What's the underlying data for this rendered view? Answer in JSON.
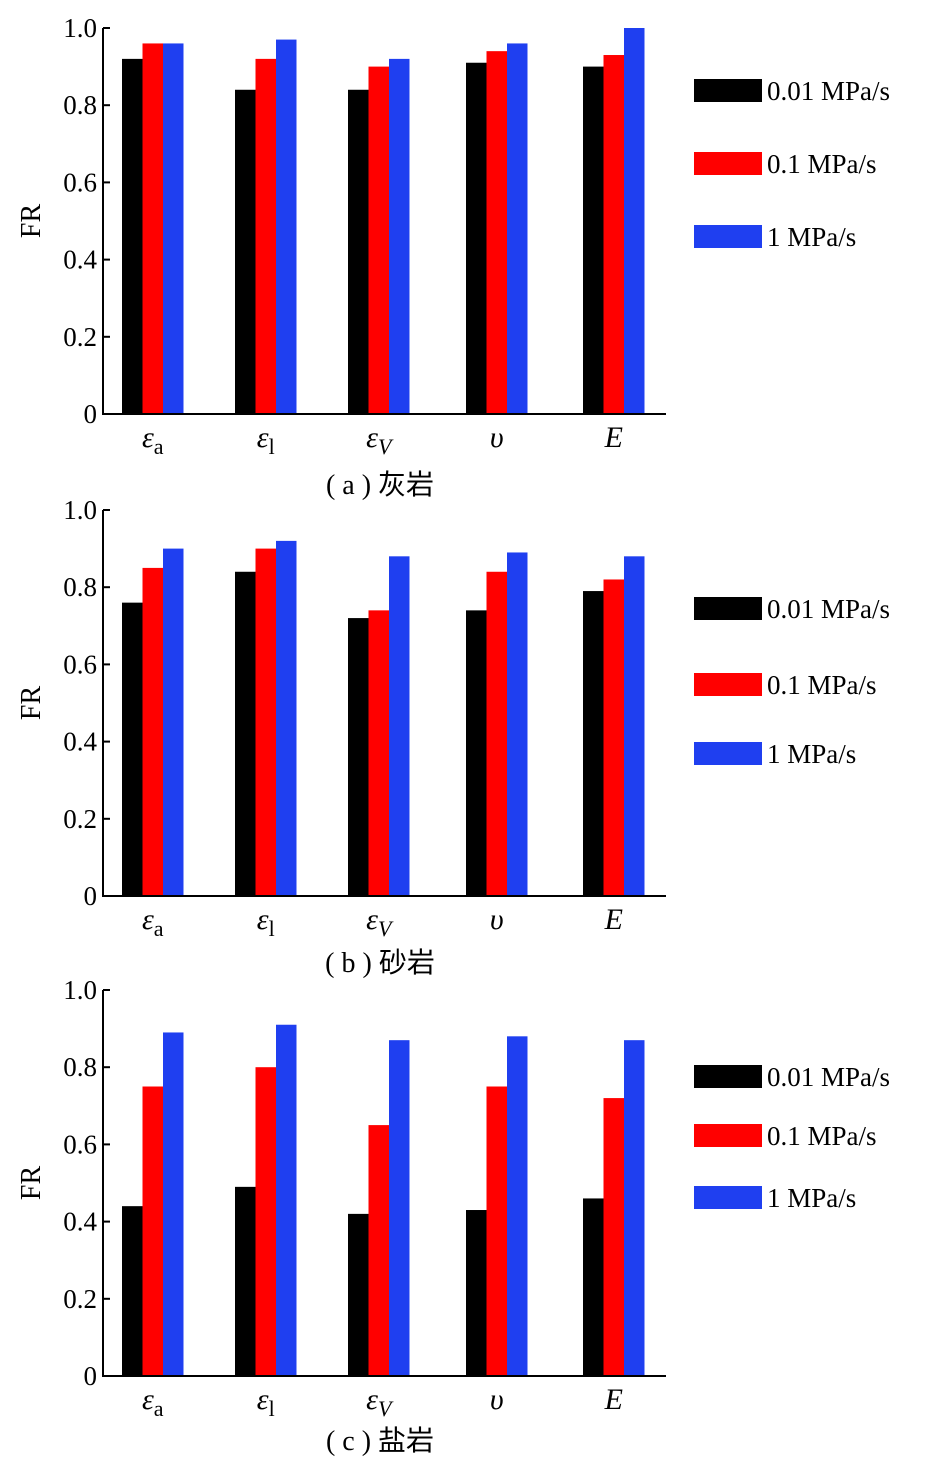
{
  "legend_labels": [
    "0.01 MPa/s",
    "0.1 MPa/s",
    "1 MPa/s"
  ],
  "series_colors": [
    "#000000",
    "#ff0000",
    "#1f3ff0"
  ],
  "chart_data": [
    {
      "type": "bar",
      "caption": "( a ) 灰岩",
      "ylabel": "FR",
      "ylim": [
        0,
        1.0
      ],
      "yticks": [
        "0",
        "0.2",
        "0.4",
        "0.6",
        "0.8",
        "1.0"
      ],
      "categories": [
        {
          "base": "ε",
          "sub": "a",
          "italic_base": true,
          "italic_sub": false
        },
        {
          "base": "ε",
          "sub": "l",
          "italic_base": true,
          "italic_sub": false
        },
        {
          "base": "ε",
          "sub": "V",
          "italic_base": true,
          "italic_sub": true
        },
        {
          "base": "υ",
          "sub": "",
          "italic_base": true,
          "italic_sub": false
        },
        {
          "base": "E",
          "sub": "",
          "italic_base": true,
          "italic_sub": false
        }
      ],
      "series": [
        {
          "name": "0.01 MPa/s",
          "values": [
            0.92,
            0.84,
            0.84,
            0.91,
            0.9
          ]
        },
        {
          "name": "0.1 MPa/s",
          "values": [
            0.96,
            0.92,
            0.9,
            0.94,
            0.93
          ]
        },
        {
          "name": "1 MPa/s",
          "values": [
            0.96,
            0.97,
            0.92,
            0.96,
            1.0
          ]
        }
      ],
      "legend_position": "right"
    },
    {
      "type": "bar",
      "caption": "( b ) 砂岩",
      "ylabel": "FR",
      "ylim": [
        0,
        1.0
      ],
      "yticks": [
        "0",
        "0.2",
        "0.4",
        "0.6",
        "0.8",
        "1.0"
      ],
      "categories": [
        {
          "base": "ε",
          "sub": "a",
          "italic_base": true,
          "italic_sub": false
        },
        {
          "base": "ε",
          "sub": "l",
          "italic_base": true,
          "italic_sub": false
        },
        {
          "base": "ε",
          "sub": "V",
          "italic_base": true,
          "italic_sub": true
        },
        {
          "base": "υ",
          "sub": "",
          "italic_base": true,
          "italic_sub": false
        },
        {
          "base": "E",
          "sub": "",
          "italic_base": true,
          "italic_sub": false
        }
      ],
      "series": [
        {
          "name": "0.01 MPa/s",
          "values": [
            0.76,
            0.84,
            0.72,
            0.74,
            0.79
          ]
        },
        {
          "name": "0.1 MPa/s",
          "values": [
            0.85,
            0.9,
            0.74,
            0.84,
            0.82
          ]
        },
        {
          "name": "1 MPa/s",
          "values": [
            0.9,
            0.92,
            0.88,
            0.89,
            0.88
          ]
        }
      ],
      "legend_position": "right"
    },
    {
      "type": "bar",
      "caption": "( c ) 盐岩",
      "ylabel": "FR",
      "ylim": [
        0,
        1.0
      ],
      "yticks": [
        "0",
        "0.2",
        "0.4",
        "0.6",
        "0.8",
        "1.0"
      ],
      "categories": [
        {
          "base": "ε",
          "sub": "a",
          "italic_base": true,
          "italic_sub": false
        },
        {
          "base": "ε",
          "sub": "l",
          "italic_base": true,
          "italic_sub": false
        },
        {
          "base": "ε",
          "sub": "V",
          "italic_base": true,
          "italic_sub": true
        },
        {
          "base": "υ",
          "sub": "",
          "italic_base": true,
          "italic_sub": false
        },
        {
          "base": "E",
          "sub": "",
          "italic_base": true,
          "italic_sub": false
        }
      ],
      "series": [
        {
          "name": "0.01 MPa/s",
          "values": [
            0.44,
            0.49,
            0.42,
            0.43,
            0.46
          ]
        },
        {
          "name": "0.1 MPa/s",
          "values": [
            0.75,
            0.8,
            0.65,
            0.75,
            0.72
          ]
        },
        {
          "name": "1 MPa/s",
          "values": [
            0.89,
            0.91,
            0.87,
            0.88,
            0.87
          ]
        }
      ],
      "legend_position": "right"
    }
  ]
}
